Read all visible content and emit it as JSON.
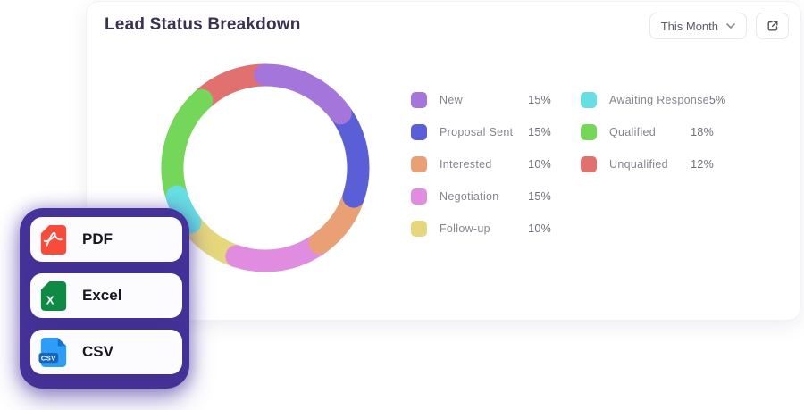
{
  "header": {
    "title": "Lead Status Breakdown",
    "period_selector": {
      "selected": "This Month",
      "chevron_icon": "chevron-down-icon"
    },
    "open_external_icon": "external-link-icon"
  },
  "chart_data": {
    "type": "donut",
    "title": "Lead Status Breakdown",
    "legend_position": "right",
    "start_angle_deg": 0,
    "direction": "clockwise",
    "segments": [
      {
        "label": "New",
        "value": 15,
        "percent_label": "15%",
        "color": "#a475da"
      },
      {
        "label": "Proposal Sent",
        "value": 15,
        "percent_label": "15%",
        "color": "#5a5fd8"
      },
      {
        "label": "Interested",
        "value": 10,
        "percent_label": "10%",
        "color": "#e9a074"
      },
      {
        "label": "Negotiation",
        "value": 15,
        "percent_label": "15%",
        "color": "#e08ce1"
      },
      {
        "label": "Follow-up",
        "value": 10,
        "percent_label": "10%",
        "color": "#e5d77c"
      },
      {
        "label": "Awaiting Response",
        "value": 5,
        "percent_label": "5%",
        "color": "#67dfe1"
      },
      {
        "label": "Qualified",
        "value": 18,
        "percent_label": "18%",
        "color": "#74d75a"
      },
      {
        "label": "Unqualified",
        "value": 12,
        "percent_label": "12%",
        "color": "#e0716e"
      }
    ]
  },
  "export_menu": {
    "backdrop_color": "#46339b",
    "items": [
      {
        "label": "PDF",
        "icon": "pdf-file-icon",
        "icon_color": "#f84b3c"
      },
      {
        "label": "Excel",
        "icon": "excel-file-icon",
        "icon_color": "#0f8a44",
        "icon_glyph": "X"
      },
      {
        "label": "CSV",
        "icon": "csv-file-icon",
        "icon_color": "#2e9df5",
        "badge_text": "CSV",
        "badge_color": "#1565c0"
      }
    ]
  }
}
